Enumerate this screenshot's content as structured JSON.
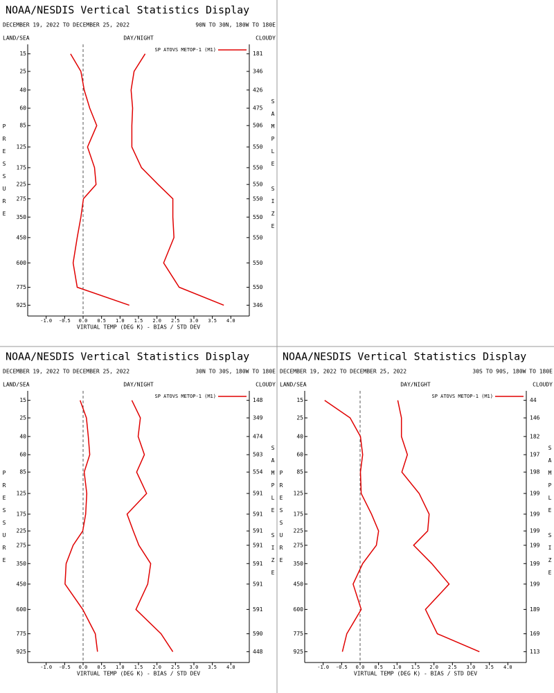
{
  "chart_data": [
    {
      "type": "line",
      "title": "NOAA/NESDIS Vertical Statistics Display",
      "subtitle": "DECEMBER 19, 2022 TO DECEMBER 25, 2022",
      "region": "90N TO 30N, 180W TO 180E",
      "land_sea": "LAND/SEA",
      "day_night": "DAY/NIGHT",
      "cloud": "CLOUDY",
      "ylabel": "PRESSURE",
      "y2label": "SAMPLE SIZE",
      "xlabel": "VIRTUAL TEMP (DEG K) - BIAS / STD DEV",
      "y": [
        15,
        25,
        40,
        60,
        85,
        125,
        175,
        225,
        275,
        350,
        450,
        600,
        775,
        925
      ],
      "series": [
        {
          "name": "SP ATOVS METOP-1 (M1)",
          "color": "#e00000",
          "values": [
            -0.34,
            -0.06,
            0.03,
            0.18,
            0.37,
            0.12,
            0.31,
            0.35,
            0.01,
            -0.06,
            -0.16,
            -0.27,
            -0.16,
            1.25
          ],
          "std_dev": [
            1.68,
            1.38,
            1.3,
            1.34,
            1.32,
            1.32,
            1.58,
            2.03,
            2.43,
            2.43,
            2.46,
            2.18,
            2.6,
            3.81
          ]
        }
      ],
      "sample_size": [
        181,
        346,
        426,
        475,
        506,
        550,
        550,
        550,
        550,
        550,
        550,
        550,
        550,
        346
      ],
      "xlim": [
        -1.5,
        4.5
      ],
      "xticks": [
        {
          "value": -1,
          "label": "-1.0"
        },
        -0.5,
        {
          "value": 0,
          "label": "0.0"
        },
        0.5,
        {
          "value": 1,
          "label": "1.0"
        },
        1.5,
        {
          "value": 2,
          "label": "2.0"
        },
        2.5,
        {
          "value": 3,
          "label": "3.0"
        },
        3.5,
        {
          "value": 4,
          "label": "4.0"
        }
      ],
      "ylim": [
        11,
        1025
      ],
      "yticks": [
        15,
        25,
        40,
        60,
        85,
        125,
        175,
        225,
        275,
        350,
        450,
        600,
        775,
        925
      ]
    },
    {
      "type": "line",
      "title": "NOAA/NESDIS Vertical Statistics Display",
      "subtitle": "DECEMBER 19, 2022 TO DECEMBER 25, 2022",
      "region": "30N TO 30S, 180W TO 180E",
      "land_sea": "LAND/SEA",
      "day_night": "DAY/NIGHT",
      "cloud": "CLOUDY",
      "ylabel": "PRESSURE",
      "y2label": "SAMPLE SIZE",
      "xlabel": "VIRTUAL TEMP (DEG K) - BIAS / STD DEV",
      "y": [
        15,
        25,
        40,
        60,
        85,
        125,
        175,
        225,
        275,
        350,
        450,
        600,
        775,
        925
      ],
      "series": [
        {
          "name": "SP ATOVS METOP-1 (M1)",
          "color": "#e00000",
          "values": [
            -0.08,
            0.09,
            0.14,
            0.18,
            0.03,
            0.1,
            0.07,
            -0.01,
            -0.27,
            -0.46,
            -0.49,
            -0.01,
            0.33,
            0.39
          ],
          "std_dev": [
            1.32,
            1.55,
            1.49,
            1.66,
            1.45,
            1.72,
            1.19,
            1.36,
            1.51,
            1.83,
            1.75,
            1.43,
            2.11,
            2.43
          ]
        }
      ],
      "sample_size": [
        148,
        349,
        474,
        503,
        554,
        591,
        591,
        591,
        591,
        591,
        591,
        591,
        590,
        448
      ],
      "xlim": [
        -1.5,
        4.5
      ],
      "xticks": [
        {
          "value": -1,
          "label": "-1.0"
        },
        -0.5,
        {
          "value": 0,
          "label": "0.0"
        },
        0.5,
        {
          "value": 1,
          "label": "1.0"
        },
        1.5,
        {
          "value": 2,
          "label": "2.0"
        },
        2.5,
        {
          "value": 3,
          "label": "3.0"
        },
        3.5,
        {
          "value": 4,
          "label": "4.0"
        }
      ],
      "ylim": [
        11,
        1025
      ],
      "yticks": [
        15,
        25,
        40,
        60,
        85,
        125,
        175,
        225,
        275,
        350,
        450,
        600,
        775,
        925
      ]
    },
    {
      "type": "line",
      "title": "NOAA/NESDIS Vertical Statistics Display",
      "subtitle": "DECEMBER 19, 2022 TO DECEMBER 25, 2022",
      "region": "30S TO 90S, 180W TO 180E",
      "land_sea": "LAND/SEA",
      "day_night": "DAY/NIGHT",
      "cloud": "CLOUDY",
      "ylabel": "PRESSURE",
      "y2label": "SAMPLE SIZE",
      "xlabel": "VIRTUAL TEMP (DEG K) - BIAS / STD DEV",
      "y": [
        15,
        25,
        40,
        60,
        85,
        125,
        175,
        225,
        275,
        350,
        450,
        600,
        775,
        925
      ],
      "series": [
        {
          "name": "SP ATOVS METOP-1 (M1)",
          "color": "#e00000",
          "values": [
            -0.96,
            -0.27,
            0.01,
            0.07,
            0.01,
            0.03,
            0.31,
            0.5,
            0.44,
            0.07,
            -0.19,
            0.03,
            -0.36,
            -0.48
          ],
          "std_dev": [
            1.02,
            1.12,
            1.12,
            1.28,
            1.13,
            1.6,
            1.87,
            1.83,
            1.45,
            1.94,
            2.41,
            1.77,
            2.09,
            3.23
          ]
        }
      ],
      "sample_size": [
        44,
        146,
        182,
        197,
        198,
        199,
        199,
        199,
        199,
        199,
        199,
        189,
        169,
        113
      ],
      "xlim": [
        -1.5,
        4.5
      ],
      "xticks": [
        {
          "value": -1,
          "label": "-1.0"
        },
        -0.5,
        {
          "value": 0,
          "label": "0.0"
        },
        0.5,
        {
          "value": 1,
          "label": "1.0"
        },
        1.5,
        {
          "value": 2,
          "label": "2.0"
        },
        2.5,
        {
          "value": 3,
          "label": "3.0"
        },
        3.5,
        {
          "value": 4,
          "label": "4.0"
        }
      ],
      "ylim": [
        11,
        1025
      ],
      "yticks": [
        15,
        25,
        40,
        60,
        85,
        125,
        175,
        225,
        275,
        350,
        450,
        600,
        775,
        925
      ]
    }
  ]
}
